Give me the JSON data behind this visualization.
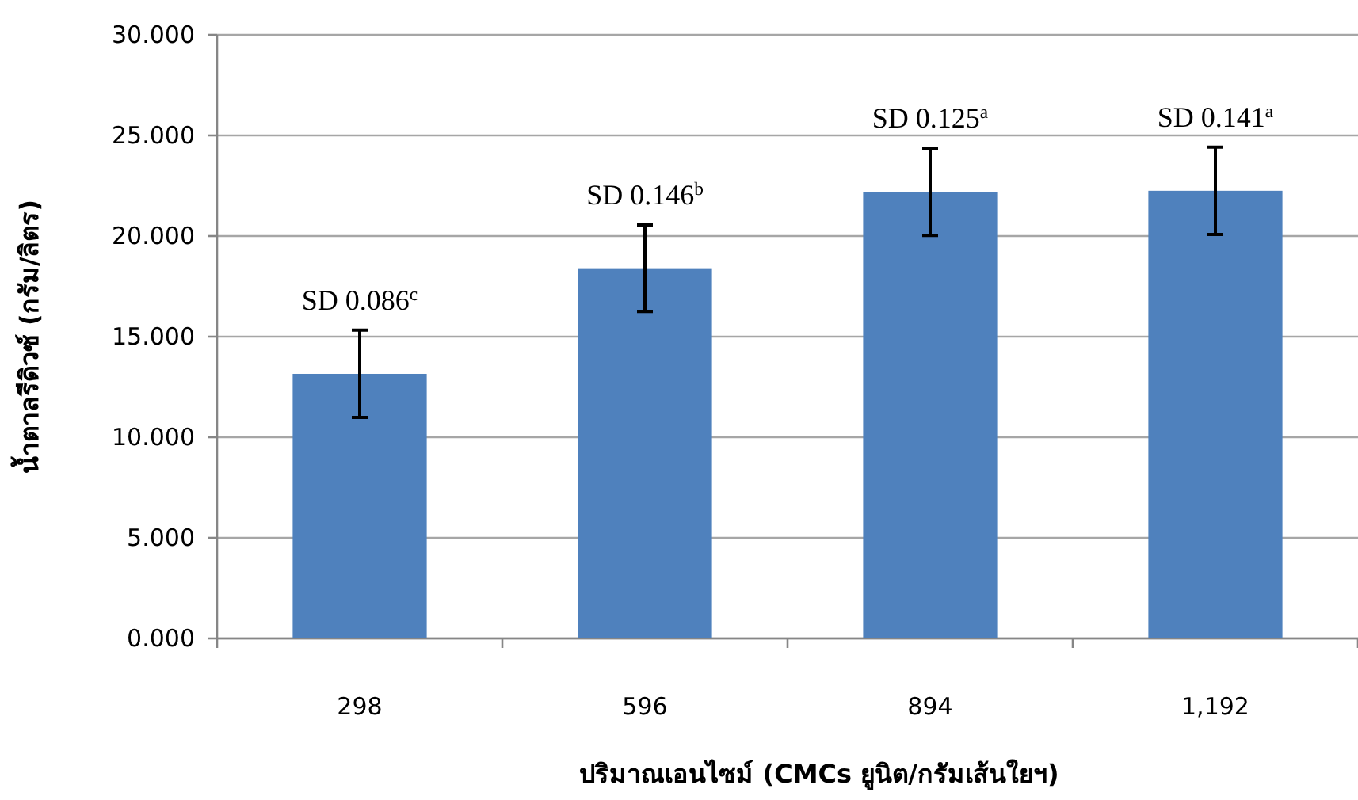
{
  "chart_data": {
    "type": "bar",
    "xlabel": "ปริมาณเอนไซม์ (CMCs ยูนิต/กรัมเส้นใยฯ)",
    "ylabel": "น้ำตาลรีดิวซ์ (กรัม/ลิตร)",
    "categories": [
      "298",
      "596",
      "894",
      "1,192"
    ],
    "values": [
      13.15,
      18.4,
      22.2,
      22.25
    ],
    "errors": [
      2.17,
      2.15,
      2.17,
      2.17
    ],
    "color": "#4f81bd",
    "ylim": [
      0,
      30
    ],
    "yticks": [
      {
        "value": 0,
        "label": "0.000"
      },
      {
        "value": 5,
        "label": "5.000"
      },
      {
        "value": 10,
        "label": "10.000"
      },
      {
        "value": 15,
        "label": "15.000"
      },
      {
        "value": 20,
        "label": "20.000"
      },
      {
        "value": 25,
        "label": "25.000"
      },
      {
        "value": 30,
        "label": "30.000"
      }
    ],
    "grid": "y",
    "annotations": [
      {
        "text": "SD 0.086$^{c}$",
        "x": "298",
        "y": 13.15
      },
      {
        "text": "SD 0.146$^{b}$",
        "x": "596",
        "y": 18.4
      },
      {
        "text": "SD 0.125$^{a}$",
        "x": "894",
        "y": 22.2
      },
      {
        "text": "SD 0.141$^{a}$",
        "x": "1,192",
        "y": 22.25
      }
    ]
  }
}
